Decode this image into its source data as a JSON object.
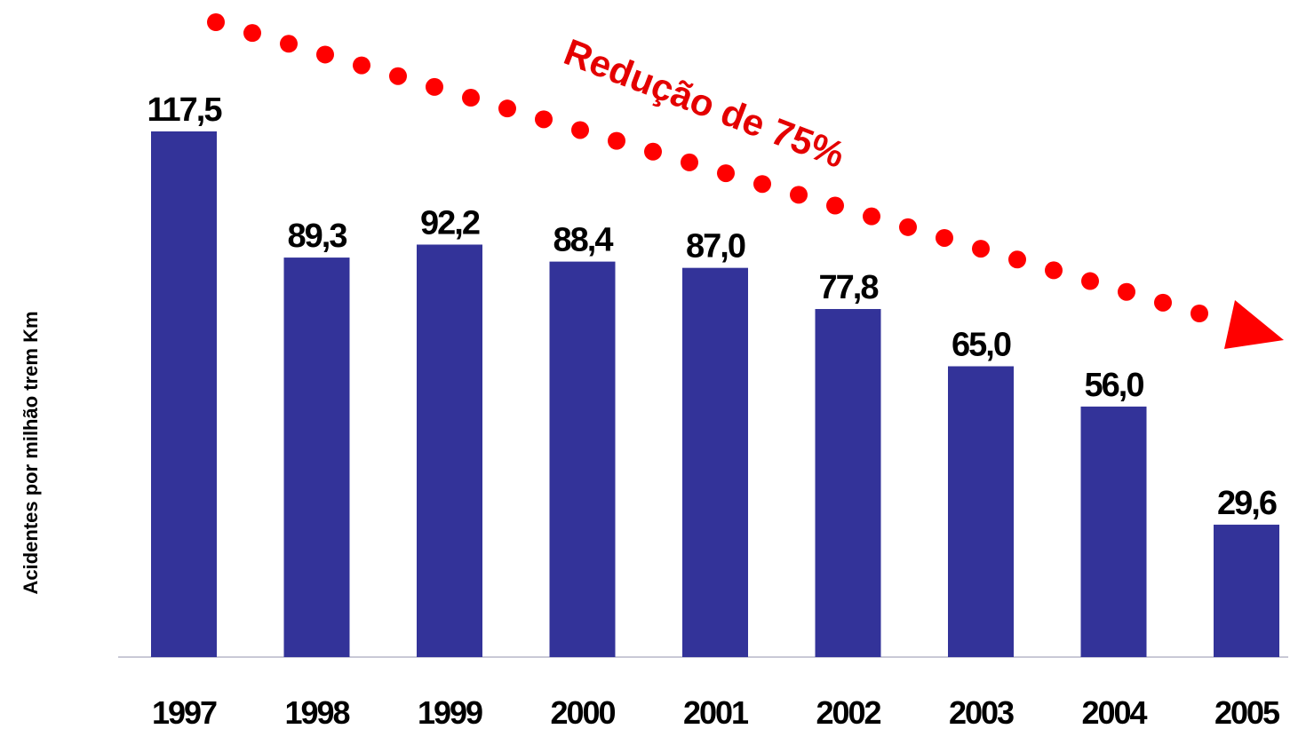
{
  "chart_data": {
    "type": "bar",
    "categories": [
      "1997",
      "1998",
      "1999",
      "2000",
      "2001",
      "2002",
      "2003",
      "2004",
      "2005"
    ],
    "values": [
      117.5,
      89.3,
      92.2,
      88.4,
      87.0,
      77.8,
      65.0,
      56.0,
      29.6
    ],
    "data_labels": [
      "117,5",
      "89,3",
      "92,2",
      "88,4",
      "87,0",
      "77,8",
      "65,0",
      "56,0",
      "29,6"
    ],
    "ylabel": "Acidentes por milhão trem Km",
    "xlabel": "",
    "ylim": [
      0,
      117.5
    ],
    "grid": false,
    "bar_color": "#333399",
    "annotation": {
      "text": "Redução de 75%",
      "color": "#e40000",
      "style": "dotted-arrow-downward"
    }
  }
}
